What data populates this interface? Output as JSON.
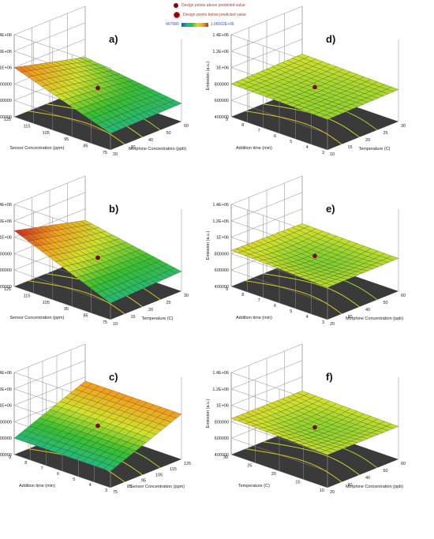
{
  "legend": {
    "above_label": "Design points above predicted value",
    "below_label": "Design points below predicted value",
    "scale_min": "407080",
    "scale_max": "1.06562E+06",
    "above_color": "#8b0000",
    "below_color": "#8b0000"
  },
  "z_axis": {
    "label": "Emission (a.u.)",
    "ticks": [
      "400000",
      "600000",
      "800000",
      "1E+06",
      "1.2E+06",
      "1.4E+06"
    ],
    "range": [
      400000,
      1400000
    ]
  },
  "chart_data": [
    {
      "id": "a",
      "panel_label": "a)",
      "type": "surface",
      "xlabel": "Morphine Concentration (ppb)",
      "ylabel": "Sensor Concentration (ppm)",
      "zlabel": "Emission (a.u.)",
      "x_ticks": [
        "20",
        "30",
        "40",
        "50",
        "60"
      ],
      "y_ticks": [
        "75",
        "85",
        "95",
        "105",
        "115",
        "125"
      ],
      "xlim": [
        20,
        60
      ],
      "ylim": [
        75,
        125
      ],
      "corner_values": {
        "xmin_ymin": 600000,
        "xmax_ymin": 620000,
        "xmin_ymax": 1000000,
        "xmax_ymax": 780000,
        "center": 760000
      },
      "design_point": 780000
    },
    {
      "id": "b",
      "panel_label": "b)",
      "type": "surface",
      "xlabel": "Temperature (C)",
      "ylabel": "Sensor Concentration (ppm)",
      "zlabel": "Emission (a.u.)",
      "x_ticks": [
        "10",
        "15",
        "20",
        "25",
        "30"
      ],
      "y_ticks": [
        "75",
        "85",
        "95",
        "105",
        "115",
        "125"
      ],
      "xlim": [
        10,
        30
      ],
      "ylim": [
        75,
        125
      ],
      "corner_values": {
        "xmin_ymin": 600000,
        "xmax_ymin": 640000,
        "xmin_ymax": 1080000,
        "xmax_ymax": 860000,
        "center": 780000
      },
      "design_point": 780000
    },
    {
      "id": "c",
      "panel_label": "c)",
      "type": "surface",
      "xlabel": "Sensor Concentration (ppm)",
      "ylabel": "Addition time (min)",
      "zlabel": "Emission (a.u.)",
      "x_ticks": [
        "75",
        "85",
        "95",
        "105",
        "115",
        "125"
      ],
      "y_ticks": [
        "3",
        "4",
        "5",
        "6",
        "7",
        "8",
        "9"
      ],
      "xlim": [
        75,
        125
      ],
      "ylim": [
        3,
        9
      ],
      "corner_values": {
        "xmin_ymin": 600000,
        "xmax_ymin": 950000,
        "xmin_ymax": 600000,
        "xmax_ymax": 950000,
        "center": 780000
      },
      "design_point": 780000
    },
    {
      "id": "d",
      "panel_label": "d)",
      "type": "surface",
      "xlabel": "Temperature (C)",
      "ylabel": "Addition time (min)",
      "zlabel": "Emission (a.u.)",
      "x_ticks": [
        "10",
        "15",
        "20",
        "25",
        "30"
      ],
      "y_ticks": [
        "3",
        "4",
        "5",
        "6",
        "7",
        "8",
        "9"
      ],
      "xlim": [
        10,
        30
      ],
      "ylim": [
        3,
        9
      ],
      "corner_values": {
        "xmin_ymin": 770000,
        "xmax_ymin": 790000,
        "xmin_ymax": 800000,
        "xmax_ymax": 820000,
        "center": 780000
      },
      "design_point": 790000
    },
    {
      "id": "e",
      "panel_label": "e)",
      "type": "surface",
      "xlabel": "Morphine Concentration (ppb)",
      "ylabel": "Addition time (min)",
      "zlabel": "Emission (a.u.)",
      "x_ticks": [
        "20",
        "30",
        "40",
        "50",
        "60"
      ],
      "y_ticks": [
        "3",
        "4",
        "5",
        "6",
        "7",
        "8",
        "9"
      ],
      "xlim": [
        20,
        60
      ],
      "ylim": [
        3,
        9
      ],
      "corner_values": {
        "xmin_ymin": 790000,
        "xmax_ymin": 800000,
        "xmin_ymax": 840000,
        "xmax_ymax": 820000,
        "center": 760000
      },
      "design_point": 800000
    },
    {
      "id": "f",
      "panel_label": "f)",
      "type": "surface",
      "xlabel": "Morphine Concentration (ppb)",
      "ylabel": "Temperature (C)",
      "zlabel": "Emission (a.u.)",
      "x_ticks": [
        "20",
        "30",
        "40",
        "50",
        "60"
      ],
      "y_ticks": [
        "10",
        "15",
        "20",
        "25",
        "30"
      ],
      "xlim": [
        20,
        60
      ],
      "ylim": [
        10,
        30
      ],
      "corner_values": {
        "xmin_ymin": 800000,
        "xmax_ymin": 800000,
        "xmin_ymax": 840000,
        "xmax_ymax": 830000,
        "center": 770000
      },
      "design_point": 760000
    }
  ]
}
